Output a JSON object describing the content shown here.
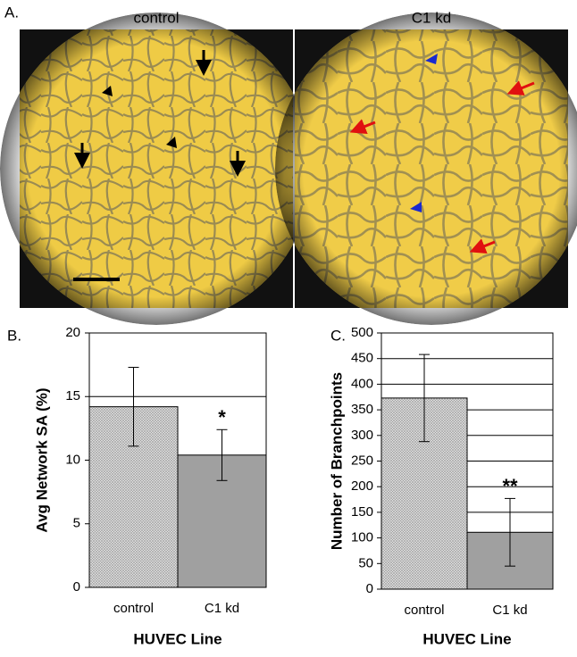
{
  "panel_a": {
    "label": "A.",
    "titles": [
      "control",
      "C1 kd"
    ]
  },
  "chart_data": [
    {
      "type": "bar",
      "panel_label": "B.",
      "ylabel": "Avg Network SA (%)",
      "xlabel": "HUVEC Line",
      "categories": [
        "control",
        "C1 kd"
      ],
      "values": [
        14.2,
        10.4
      ],
      "errors": [
        3.1,
        2.0
      ],
      "significance": [
        null,
        "*"
      ],
      "colors": [
        "#d6d6d6",
        "#a0a0a0"
      ],
      "ylim": [
        0,
        20
      ],
      "yticks": [
        0,
        5,
        10,
        15,
        20
      ],
      "grid": true
    },
    {
      "type": "bar",
      "panel_label": "C.",
      "ylabel": "Number of Branchpoints",
      "xlabel": "HUVEC Line",
      "categories": [
        "control",
        "C1 kd"
      ],
      "values": [
        373,
        111
      ],
      "errors": [
        85,
        66
      ],
      "significance": [
        null,
        "**"
      ],
      "colors": [
        "#d6d6d6",
        "#a0a0a0"
      ],
      "ylim": [
        0,
        500
      ],
      "yticks": [
        0,
        50,
        100,
        150,
        200,
        250,
        300,
        350,
        400,
        450,
        500
      ],
      "grid": true
    }
  ]
}
